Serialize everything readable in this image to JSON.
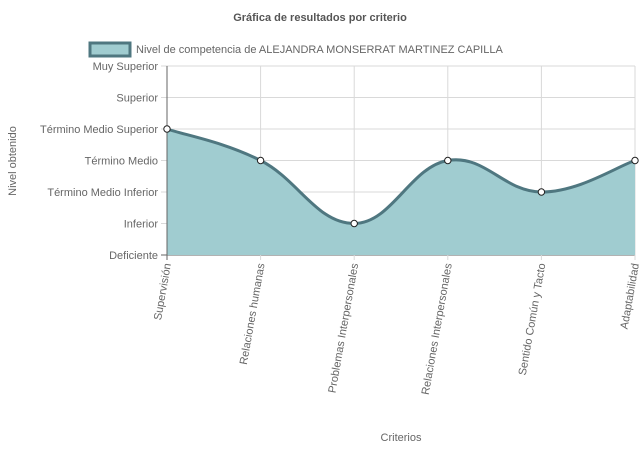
{
  "chart_data": {
    "type": "area",
    "title": "Gráfica de resultados por criterio",
    "xlabel": "Criterios",
    "ylabel": "Nivel obtenido",
    "y_levels": [
      "Deficiente",
      "Inferior",
      "Término Medio Inferior",
      "Término Medio",
      "Término Medio Superior",
      "Superior",
      "Muy Superior"
    ],
    "ylim": [
      0,
      6
    ],
    "categories": [
      "Supervisión",
      "Relaciones humanas",
      "Problemas Interpersonales",
      "Relaciones Interpersonales",
      "Sentido Común y Tacto",
      "Adaptabilidad"
    ],
    "series": [
      {
        "name": "Nivel de competencia de ALEJANDRA MONSERRAT MARTINEZ CAPILLA",
        "values": [
          4,
          3,
          1,
          3,
          2,
          3
        ]
      }
    ],
    "legend_position": "top",
    "grid": true,
    "colors": {
      "fill": "#a0ccd0",
      "stroke": "#4f7780",
      "grid": "#d9d9d9",
      "axis": "#666666",
      "point_fill": "#ffffff"
    }
  }
}
